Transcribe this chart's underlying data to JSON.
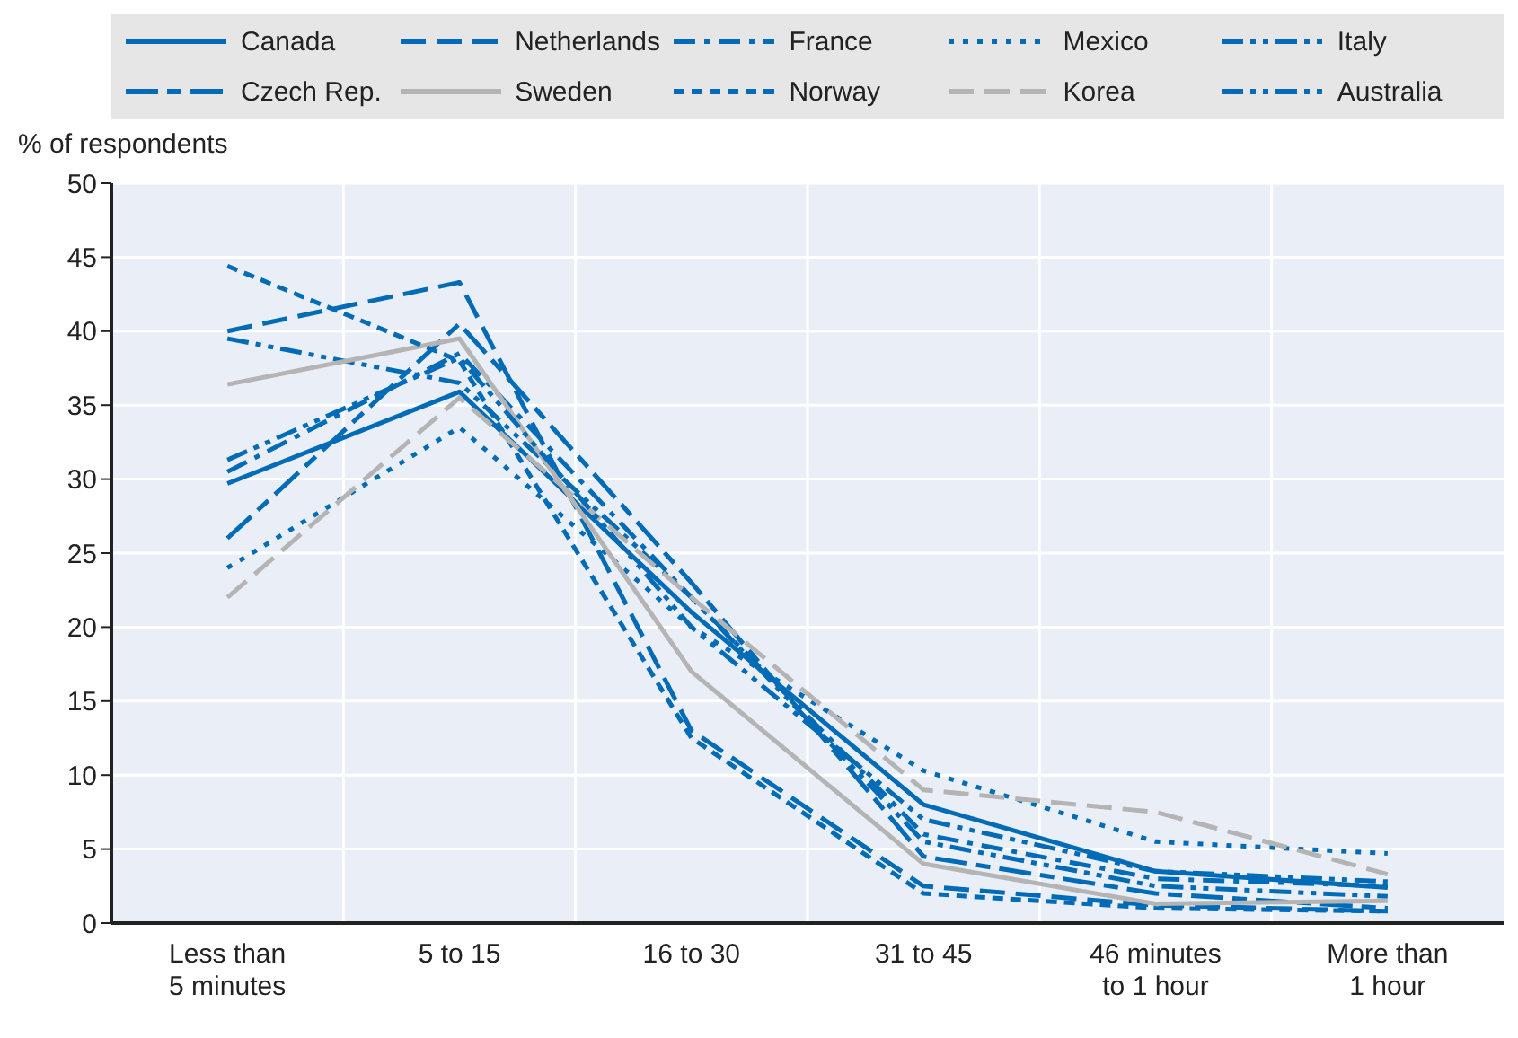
{
  "chart_data": {
    "type": "line",
    "ylabel": "% of respondents",
    "categories": [
      "Less than 5 minutes",
      "5 to 15",
      "16 to 30",
      "31 to 45",
      "46 minutes to 1 hour",
      "More than 1 hour"
    ],
    "ylim": [
      0,
      50
    ],
    "yticks": [
      0,
      5,
      10,
      15,
      20,
      25,
      30,
      35,
      40,
      45,
      50
    ],
    "grid": true,
    "legend": "top",
    "marker": "none",
    "series": [
      {
        "name": "Canada",
        "color": "#006bb6",
        "line_style": "solid",
        "values": [
          29.7,
          35.9,
          21,
          8,
          3.5,
          2.4
        ]
      },
      {
        "name": "Netherlands",
        "color": "#006bb6",
        "line_style": "dashed",
        "values": [
          40,
          43.3,
          13,
          2.5,
          1.2,
          0.8
        ]
      },
      {
        "name": "France",
        "color": "#006bb6",
        "line_style": "dashdot",
        "values": [
          30.5,
          38.5,
          22,
          6,
          3,
          2.5
        ]
      },
      {
        "name": "Mexico",
        "color": "#006bb6",
        "line_style": "dotted",
        "values": [
          24,
          33.5,
          20,
          10.3,
          5.5,
          4.7
        ]
      },
      {
        "name": "Italy",
        "color": "#006bb6",
        "line_style": "dashdotdot",
        "values": [
          39.5,
          36.5,
          22,
          5.5,
          2.5,
          1.8
        ]
      },
      {
        "name": "Czech Rep.",
        "color": "#006bb6",
        "line_style": "longshort",
        "values": [
          26,
          40.5,
          23,
          4.5,
          2,
          1
        ]
      },
      {
        "name": "Sweden",
        "color": "#b4b4b4",
        "line_style": "solid",
        "values": [
          36.4,
          39.5,
          17,
          4,
          1.3,
          1.5
        ]
      },
      {
        "name": "Norway",
        "color": "#006bb6",
        "line_style": "shortdash",
        "values": [
          44.4,
          38,
          12.5,
          2,
          1,
          0.8
        ]
      },
      {
        "name": "Korea",
        "color": "#b4b4b4",
        "line_style": "dashed",
        "values": [
          22,
          35.5,
          22,
          9,
          7.5,
          3.3
        ]
      },
      {
        "name": "Australia",
        "color": "#006bb6",
        "line_style": "dashdotdot",
        "values": [
          31.3,
          38.2,
          20,
          7,
          3.5,
          2.8
        ]
      }
    ]
  }
}
